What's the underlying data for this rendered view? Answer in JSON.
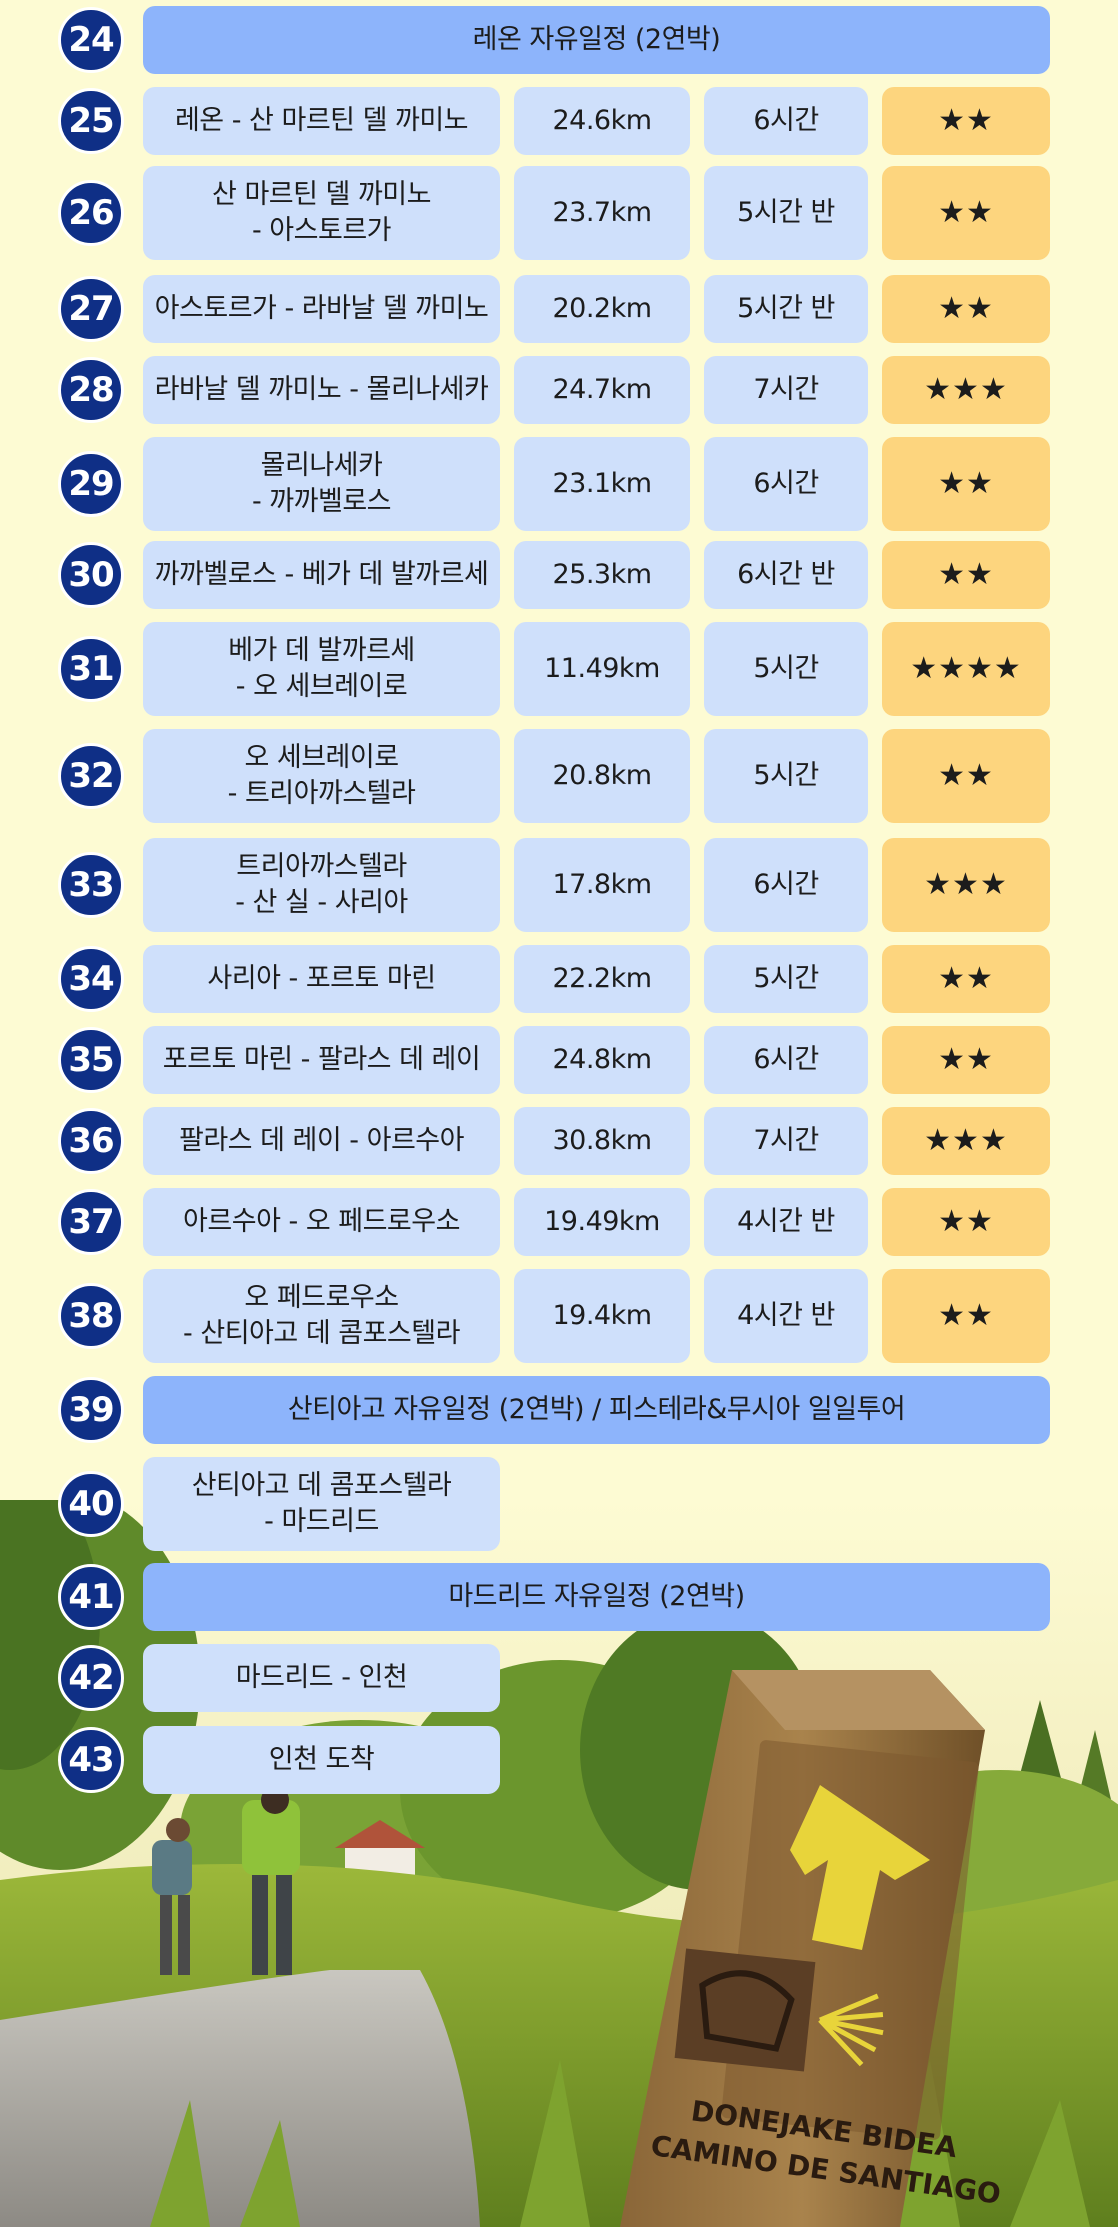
{
  "colors": {
    "badge": "#0f2f86",
    "route_cell": "#cfe0fb",
    "free_day_cell": "#8db4fb",
    "difficulty_cell": "#fdd57e",
    "background": "#fdfbd3"
  },
  "sign": {
    "line1": "DONEJAKE BIDEA",
    "line2": "CAMINO DE SANTIAGO"
  },
  "rows": [
    {
      "day": "24",
      "free": "레온 자유일정 (2연박)"
    },
    {
      "day": "25",
      "route": "레온 - 산 마르틴 델 까미노",
      "distance": "24.6km",
      "time": "6시간",
      "difficulty": "★★"
    },
    {
      "day": "26",
      "route": "산 마르틴 델 까미노\n- 아스토르가",
      "distance": "23.7km",
      "time": "5시간 반",
      "difficulty": "★★"
    },
    {
      "day": "27",
      "route": "아스토르가 - 라바날 델 까미노",
      "distance": "20.2km",
      "time": "5시간 반",
      "difficulty": "★★"
    },
    {
      "day": "28",
      "route": "라바날 델 까미노 - 몰리나세카",
      "distance": "24.7km",
      "time": "7시간",
      "difficulty": "★★★"
    },
    {
      "day": "29",
      "route": "몰리나세카\n- 까까벨로스",
      "distance": "23.1km",
      "time": "6시간",
      "difficulty": "★★"
    },
    {
      "day": "30",
      "route": "까까벨로스 - 베가 데 발까르세",
      "distance": "25.3km",
      "time": "6시간 반",
      "difficulty": "★★"
    },
    {
      "day": "31",
      "route": "베가 데 발까르세\n- 오 세브레이로",
      "distance": "11.49km",
      "time": "5시간",
      "difficulty": "★★★★"
    },
    {
      "day": "32",
      "route": "오 세브레이로\n- 트리아까스텔라",
      "distance": "20.8km",
      "time": "5시간",
      "difficulty": "★★"
    },
    {
      "day": "33",
      "route": "트리아까스텔라\n- 산 실 - 사리아",
      "distance": "17.8km",
      "time": "6시간",
      "difficulty": "★★★"
    },
    {
      "day": "34",
      "route": "사리아 - 포르토 마린",
      "distance": "22.2km",
      "time": "5시간",
      "difficulty": "★★"
    },
    {
      "day": "35",
      "route": "포르토 마린 - 팔라스 데 레이",
      "distance": "24.8km",
      "time": "6시간",
      "difficulty": "★★"
    },
    {
      "day": "36",
      "route": "팔라스 데 레이 - 아르수아",
      "distance": "30.8km",
      "time": "7시간",
      "difficulty": "★★★"
    },
    {
      "day": "37",
      "route": "아르수아 - 오 페드로우소",
      "distance": "19.49km",
      "time": "4시간 반",
      "difficulty": "★★"
    },
    {
      "day": "38",
      "route": "오 페드로우소\n- 산티아고 데 콤포스텔라",
      "distance": "19.4km",
      "time": "4시간 반",
      "difficulty": "★★"
    },
    {
      "day": "39",
      "free": "산티아고 자유일정 (2연박) / 피스테라&무시아 일일투어"
    },
    {
      "day": "40",
      "route": "산티아고 데 콤포스텔라\n- 마드리드"
    },
    {
      "day": "41",
      "free": "마드리드 자유일정 (2연박)"
    },
    {
      "day": "42",
      "route": "마드리드 - 인천"
    },
    {
      "day": "43",
      "route": "인천 도착"
    }
  ]
}
